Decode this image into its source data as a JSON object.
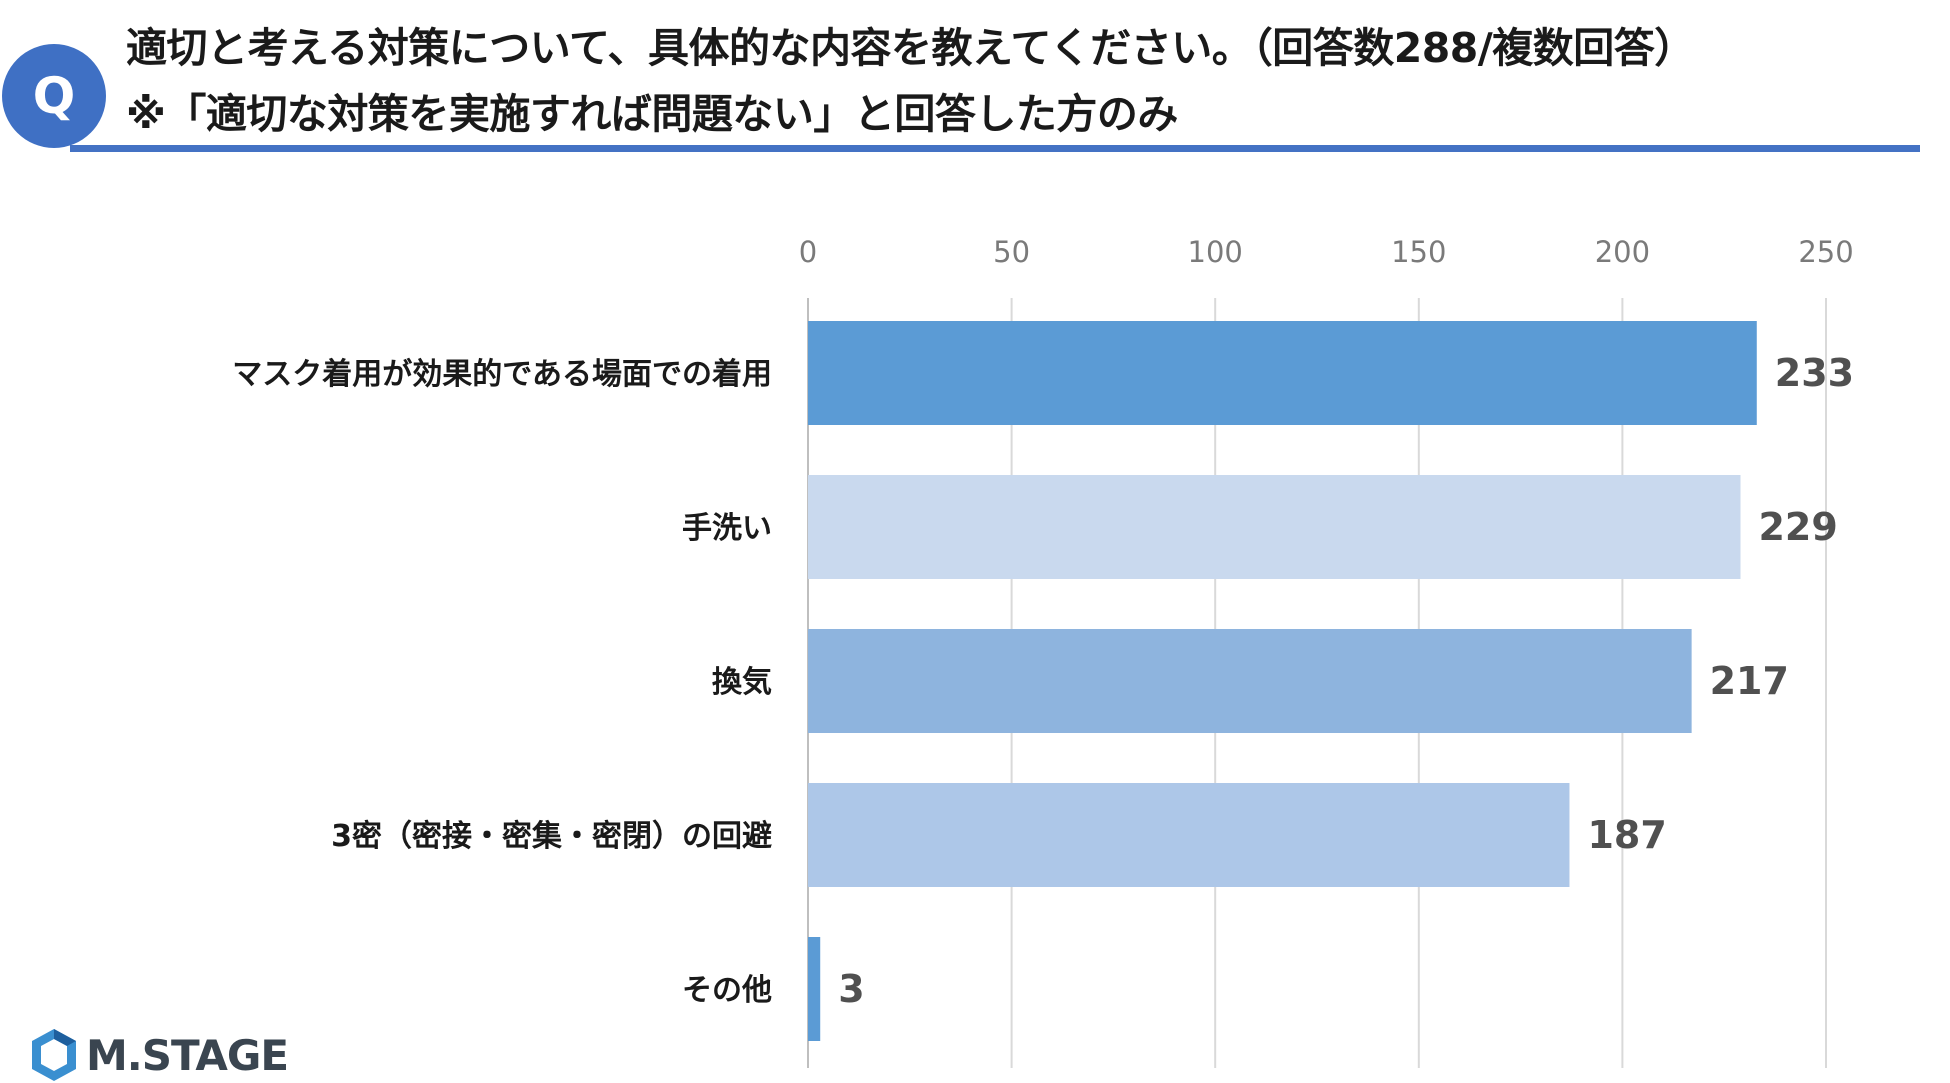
{
  "question": {
    "badge": "Q",
    "title_line1": "適切と考える対策について、具体的な内容を教えてください。（回答数288/複数回答）",
    "title_line2": "※「適切な対策を実施すれば問題ない」と回答した方のみ"
  },
  "brand": {
    "logo_text": "M.STAGE",
    "logo_icon": "hexagon-logo-icon"
  },
  "colors": {
    "accent": "#4472c4",
    "badge": "#3f70c4",
    "grid": "#d9d9d9"
  },
  "chart_data": {
    "type": "bar",
    "orientation": "horizontal",
    "categories": [
      "マスク着用が効果的である場面での着用",
      "手洗い",
      "換気",
      "3密（密接・密集・密閉）の回避",
      "その他"
    ],
    "values": [
      233,
      229,
      217,
      187,
      3
    ],
    "bar_colors": [
      "#5b9bd5",
      "#c9d9ee",
      "#8eb4de",
      "#adc7e8",
      "#5b9bd5"
    ],
    "xlim": [
      0,
      250
    ],
    "xticks": [
      0,
      50,
      100,
      150,
      200,
      250
    ],
    "x_axis_position": "top",
    "grid": true,
    "legend": "none",
    "data_labels": true
  }
}
